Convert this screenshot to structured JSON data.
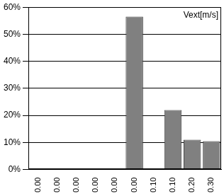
{
  "chart_data": {
    "type": "bar",
    "annotation": "Vext[m/s]",
    "categories": [
      "0.00",
      "0.00",
      "0.00",
      "0.00",
      "0.00",
      "0.00",
      "0.10",
      "0.10",
      "0.20",
      "0.30"
    ],
    "values": [
      0,
      0,
      0,
      0,
      0,
      56.5,
      0,
      22,
      11,
      10.5
    ],
    "color": "#808080",
    "ylim": [
      0,
      60
    ],
    "yticks": [
      {
        "value": 0,
        "label": "0%"
      },
      {
        "value": 10,
        "label": "10%"
      },
      {
        "value": 20,
        "label": "20%"
      },
      {
        "value": 30,
        "label": "30%"
      },
      {
        "value": 40,
        "label": "40%"
      },
      {
        "value": 50,
        "label": "50%"
      },
      {
        "value": 60,
        "label": "60%"
      }
    ],
    "grid": true
  }
}
